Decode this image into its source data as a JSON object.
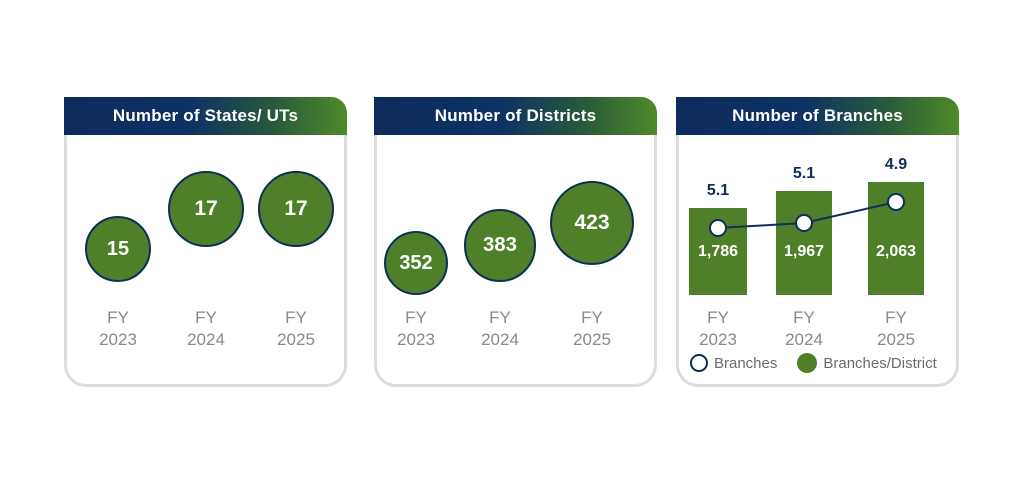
{
  "chart_data": [
    {
      "type": "bubble",
      "title": "Number of States/ UTs",
      "categories": [
        [
          "FY",
          "2023"
        ],
        [
          "FY",
          "2024"
        ],
        [
          "FY",
          "2025"
        ]
      ],
      "values": [
        15,
        17,
        17
      ]
    },
    {
      "type": "bubble",
      "title": "Number of Districts",
      "categories": [
        [
          "FY",
          "2023"
        ],
        [
          "FY",
          "2024"
        ],
        [
          "FY",
          "2025"
        ]
      ],
      "values": [
        352,
        383,
        423
      ]
    },
    {
      "type": "bar",
      "title": "Number of Branches",
      "categories": [
        [
          "FY",
          "2023"
        ],
        [
          "FY",
          "2024"
        ],
        [
          "FY",
          "2025"
        ]
      ],
      "series": [
        {
          "name": "Branches",
          "values": [
            1786,
            1967,
            2063
          ],
          "labels": [
            "1,786",
            "1,967",
            "2,063"
          ]
        },
        {
          "name": "Branches/District",
          "values": [
            5.1,
            5.1,
            4.9
          ],
          "labels": [
            "5.1",
            "5.1",
            "4.9"
          ]
        }
      ],
      "legend": "bottom"
    }
  ],
  "colors": {
    "navy": "#0f2d5a",
    "green": "#4f7f28",
    "axis_text": "#8a8a8a"
  }
}
